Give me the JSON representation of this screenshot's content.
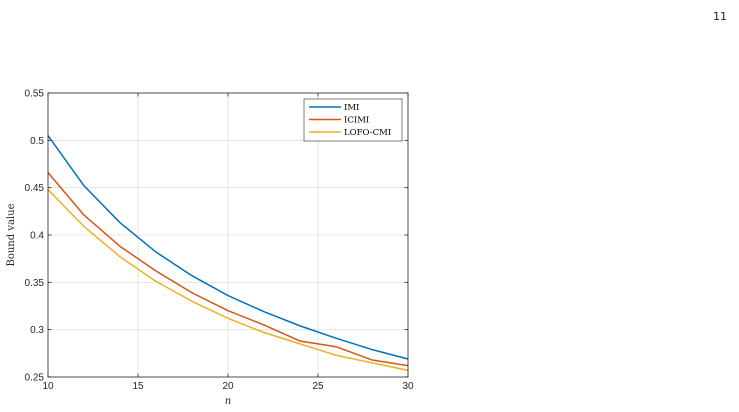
{
  "page": {
    "number": "11"
  },
  "chart_data": {
    "type": "line",
    "title": "",
    "xlabel": "n",
    "ylabel": "Bound value",
    "xlim": [
      10,
      30
    ],
    "ylim": [
      0.25,
      0.55
    ],
    "xticks": [
      10,
      15,
      20,
      25,
      30
    ],
    "yticks": [
      0.25,
      0.3,
      0.35,
      0.4,
      0.45,
      0.5,
      0.55
    ],
    "grid": true,
    "legend_position": "top-right",
    "x": [
      10,
      12,
      14,
      16,
      18,
      20,
      22,
      24,
      26,
      28,
      30
    ],
    "series": [
      {
        "name": "IMI",
        "color": "#0072BD",
        "values": [
          0.505,
          0.452,
          0.413,
          0.382,
          0.357,
          0.336,
          0.319,
          0.304,
          0.291,
          0.279,
          0.269
        ]
      },
      {
        "name": "ICIMI",
        "color": "#D95319",
        "values": [
          0.466,
          0.421,
          0.388,
          0.362,
          0.339,
          0.32,
          0.305,
          0.288,
          0.282,
          0.268,
          0.262
        ]
      },
      {
        "name": "LOFO-CMI",
        "color": "#EDB120",
        "values": [
          0.448,
          0.409,
          0.377,
          0.351,
          0.33,
          0.312,
          0.297,
          0.285,
          0.273,
          0.265,
          0.257
        ]
      }
    ]
  }
}
